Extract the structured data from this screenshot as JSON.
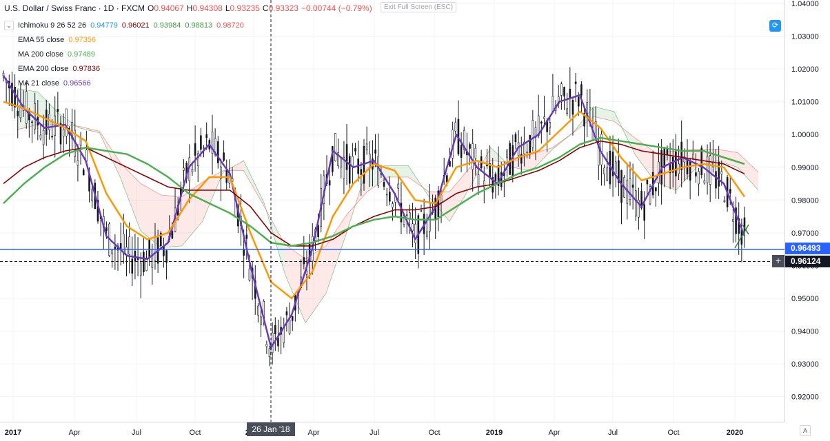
{
  "header": {
    "symbol": "U.S. Dollar / Swiss Franc · 1D · FXCM",
    "open_label": "O",
    "open": "0.94067",
    "high_label": "H",
    "high": "0.94308",
    "low_label": "L",
    "low": "0.93235",
    "close_label": "C",
    "close": "0.93323",
    "change": "−0.00744 (−0.79%)"
  },
  "exit_fullscreen": "Exit Full Screen (ESC)",
  "legend": {
    "collapse_icon": "chevron-down-icon",
    "ichimoku": {
      "name": "Ichimoku 9 26 52 26",
      "v1": "0.94779",
      "v2": "0.96021",
      "v3": "0.93984",
      "v4": "0.98813",
      "v5": "0.98720"
    },
    "ema55": {
      "name": "EMA 55 close",
      "value": "0.97356"
    },
    "ma200": {
      "name": "MA 200 close",
      "value": "0.97489"
    },
    "ema200": {
      "name": "EMA 200 close",
      "value": "0.97836"
    },
    "ma21": {
      "name": "MA 21 close",
      "value": "0.96566"
    }
  },
  "price_axis": {
    "ticks": [
      "1.04000",
      "1.03000",
      "1.02000",
      "1.01000",
      "1.00000",
      "0.99000",
      "0.98000",
      "0.97000",
      "0.96000",
      "0.95000",
      "0.94000",
      "0.93000",
      "0.92000"
    ],
    "badge_last": "0.96493",
    "badge_cursor": "0.96124"
  },
  "time_axis": {
    "ticks": [
      "2017",
      "Apr",
      "Jul",
      "Oct",
      "2018",
      "Apr",
      "Jul",
      "Oct",
      "2019",
      "Apr",
      "Jul",
      "Oct",
      "2020"
    ],
    "cursor_date": "26 Jan '18",
    "auto_label": "A"
  },
  "colors": {
    "ichimoku_conv": "#2196f3",
    "ichimoku_base": "#8b0000",
    "ichimoku_span_a": "#43a047",
    "ichimoku_span_b": "#ef5350",
    "ema55": "#ff9800",
    "ma200": "#4caf50",
    "ema200": "#8b0000",
    "ma21": "#673ab7",
    "last_price": "#2962ff",
    "candle": "#131722"
  },
  "chart_data": {
    "type": "line",
    "title": "U.S. Dollar / Swiss Franc · 1D · FXCM",
    "ylim": [
      0.915,
      1.04
    ],
    "x": [
      "2017-01",
      "2017-02",
      "2017-03",
      "2017-04",
      "2017-05",
      "2017-06",
      "2017-07",
      "2017-08",
      "2017-09",
      "2017-10",
      "2017-11",
      "2017-12",
      "2018-01",
      "2018-02",
      "2018-03",
      "2018-04",
      "2018-05",
      "2018-06",
      "2018-07",
      "2018-08",
      "2018-09",
      "2018-10",
      "2018-11",
      "2018-12",
      "2019-01",
      "2019-02",
      "2019-03",
      "2019-04",
      "2019-05",
      "2019-06",
      "2019-07",
      "2019-08",
      "2019-09",
      "2019-10",
      "2019-11",
      "2019-12",
      "2020-01"
    ],
    "series": [
      {
        "name": "MA 21 close",
        "values": [
          1.018,
          1.008,
          1.002,
          1.003,
          0.992,
          0.969,
          0.963,
          0.962,
          0.967,
          0.99,
          0.997,
          0.988,
          0.96,
          0.935,
          0.945,
          0.965,
          0.995,
          0.99,
          0.992,
          0.982,
          0.968,
          0.978,
          1.0,
          0.99,
          0.985,
          0.996,
          1.0,
          1.01,
          1.012,
          0.995,
          0.985,
          0.978,
          0.99,
          0.993,
          0.99,
          0.985,
          0.969
        ]
      },
      {
        "name": "EMA 55 close",
        "values": [
          1.01,
          1.008,
          1.005,
          1.002,
          0.998,
          0.982,
          0.972,
          0.968,
          0.97,
          0.98,
          0.987,
          0.987,
          0.97,
          0.955,
          0.95,
          0.958,
          0.975,
          0.985,
          0.991,
          0.989,
          0.98,
          0.979,
          0.99,
          0.992,
          0.99,
          0.993,
          0.995,
          1.001,
          1.007,
          1.002,
          0.993,
          0.986,
          0.988,
          0.99,
          0.991,
          0.99,
          0.981
        ]
      },
      {
        "name": "EMA 200 close",
        "values": [
          0.985,
          0.99,
          0.993,
          0.995,
          0.996,
          0.993,
          0.99,
          0.987,
          0.984,
          0.983,
          0.983,
          0.983,
          0.978,
          0.97,
          0.966,
          0.966,
          0.968,
          0.972,
          0.975,
          0.977,
          0.977,
          0.978,
          0.982,
          0.984,
          0.985,
          0.987,
          0.989,
          0.992,
          0.996,
          0.998,
          0.997,
          0.995,
          0.994,
          0.993,
          0.992,
          0.991,
          0.988
        ]
      },
      {
        "name": "MA 200 close",
        "values": [
          0.979,
          0.985,
          0.99,
          0.994,
          0.996,
          0.995,
          0.994,
          0.991,
          0.987,
          0.982,
          0.979,
          0.976,
          0.972,
          0.967,
          0.966,
          0.967,
          0.969,
          0.972,
          0.974,
          0.975,
          0.974,
          0.974,
          0.978,
          0.982,
          0.985,
          0.988,
          0.99,
          0.993,
          0.997,
          0.999,
          0.998,
          0.997,
          0.996,
          0.995,
          0.995,
          0.993,
          0.991
        ]
      }
    ]
  }
}
